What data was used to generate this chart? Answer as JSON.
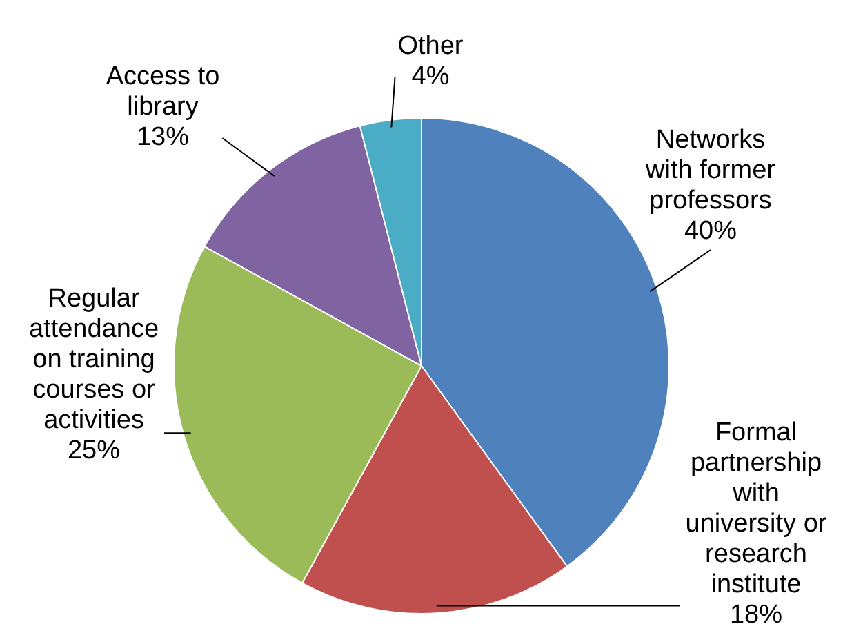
{
  "chart_data": {
    "type": "pie",
    "categories": [
      "Networks with former professors",
      "Formal partnership with university or research institute",
      "Regular attendance on training courses or activities",
      "Access to library",
      "Other"
    ],
    "values": [
      40,
      18,
      25,
      13,
      4
    ],
    "colors": [
      "#4f81bd",
      "#c0504d",
      "#9bbb59",
      "#8064a2",
      "#4bacc6"
    ],
    "value_labels": [
      "40%",
      "18%",
      "25%",
      "13%",
      "4%"
    ],
    "legend": false
  }
}
